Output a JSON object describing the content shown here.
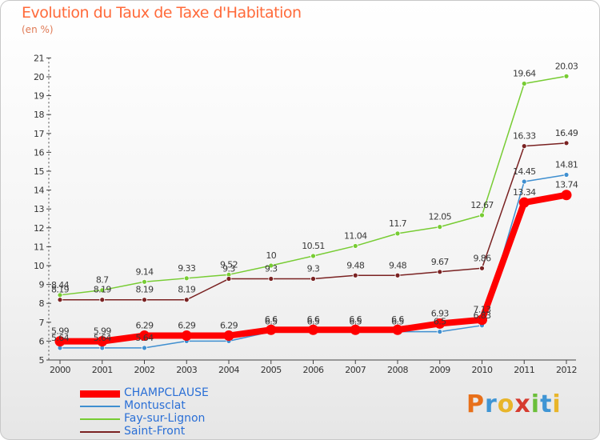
{
  "title": "Evolution du Taux de Taxe d'Habitation",
  "unit_label": "(en %)",
  "logo_text": "Proxiti",
  "logo_colors": [
    "#e8701a",
    "#3f95d4",
    "#e8b52a",
    "#d63b2f",
    "#6bbf3a",
    "#3f95d4",
    "#e8b52a"
  ],
  "chart_data": {
    "type": "line",
    "title": "Evolution du Taux de Taxe d'Habitation",
    "ylabel": "(en %)",
    "xlabel": "",
    "categories": [
      "2000",
      "2001",
      "2002",
      "2003",
      "2004",
      "2005",
      "2006",
      "2007",
      "2008",
      "2009",
      "2010",
      "2011",
      "2012"
    ],
    "ylim": [
      5,
      21
    ],
    "yticks": [
      5,
      6,
      7,
      8,
      9,
      10,
      11,
      12,
      13,
      14,
      15,
      16,
      17,
      18,
      19,
      20,
      21
    ],
    "grid": false,
    "legend_position": "bottom-left",
    "series": [
      {
        "name": "CHAMPCLAUSE",
        "color": "#ff0000",
        "emphasis": true,
        "values": [
          5.99,
          5.99,
          6.29,
          6.29,
          6.29,
          6.6,
          6.6,
          6.6,
          6.6,
          6.93,
          7.13,
          13.34,
          13.74
        ],
        "labels": [
          "5.99",
          "5.99",
          "6.29",
          "6.29",
          "6.29",
          "6.6",
          "6.6",
          "6.6",
          "6.6",
          "6.93",
          "7.13",
          "13.34",
          "13.74"
        ]
      },
      {
        "name": "Montusclat",
        "color": "#3f8fd0",
        "emphasis": false,
        "values": [
          5.64,
          5.64,
          5.64,
          6.0,
          6.0,
          6.5,
          6.5,
          6.5,
          6.5,
          6.5,
          6.83,
          14.45,
          14.81
        ],
        "labels": [
          "5.64",
          "5.64",
          "5.64",
          "",
          "",
          "6.5",
          "6.5",
          "6.5",
          "6.5",
          "6.5",
          "6.83",
          "14.45",
          "14.81"
        ]
      },
      {
        "name": "Fay-sur-Lignon",
        "color": "#77cc33",
        "emphasis": false,
        "values": [
          8.44,
          8.7,
          9.14,
          9.33,
          9.52,
          10,
          10.51,
          11.04,
          11.7,
          12.05,
          12.67,
          19.64,
          20.03
        ],
        "labels": [
          "8.44",
          "8.7",
          "9.14",
          "9.33",
          "9.52",
          "10",
          "10.51",
          "11.04",
          "11.7",
          "12.05",
          "12.67",
          "19.64",
          "20.03"
        ]
      },
      {
        "name": "Saint-Front",
        "color": "#7a2222",
        "emphasis": false,
        "values": [
          8.19,
          8.19,
          8.19,
          8.19,
          9.3,
          9.3,
          9.3,
          9.48,
          9.48,
          9.67,
          9.86,
          16.33,
          16.49
        ],
        "labels": [
          "8.19",
          "8.19",
          "8.19",
          "8.19",
          "9.3",
          "9.3",
          "9.3",
          "9.48",
          "9.48",
          "9.67",
          "9.86",
          "16.33",
          "16.49"
        ]
      }
    ]
  }
}
